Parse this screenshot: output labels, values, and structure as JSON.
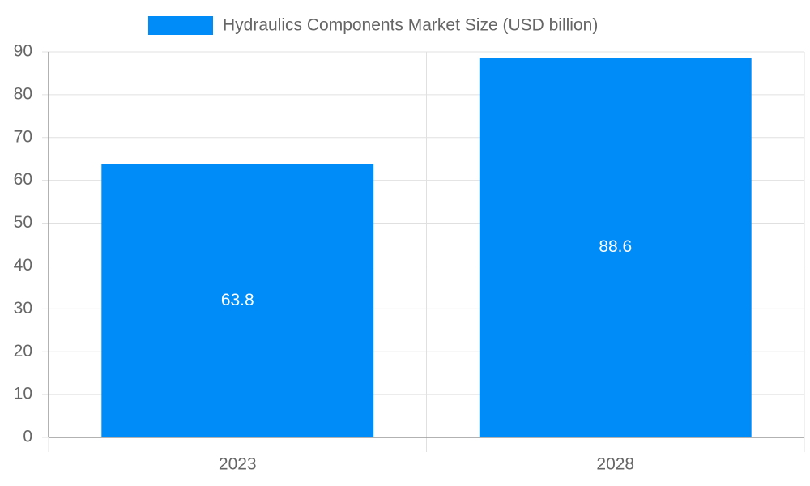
{
  "chart_data": {
    "type": "bar",
    "categories": [
      "2023",
      "2028"
    ],
    "series": [
      {
        "name": "Hydraulics Components Market Size (USD billion)",
        "color": "#008cf8",
        "values": [
          63.8,
          88.6
        ]
      }
    ],
    "ylim": [
      0,
      90
    ],
    "yticks": [
      0,
      10,
      20,
      30,
      40,
      50,
      60,
      70,
      80,
      90
    ],
    "grid": true,
    "legend": "top",
    "data_labels": true
  }
}
